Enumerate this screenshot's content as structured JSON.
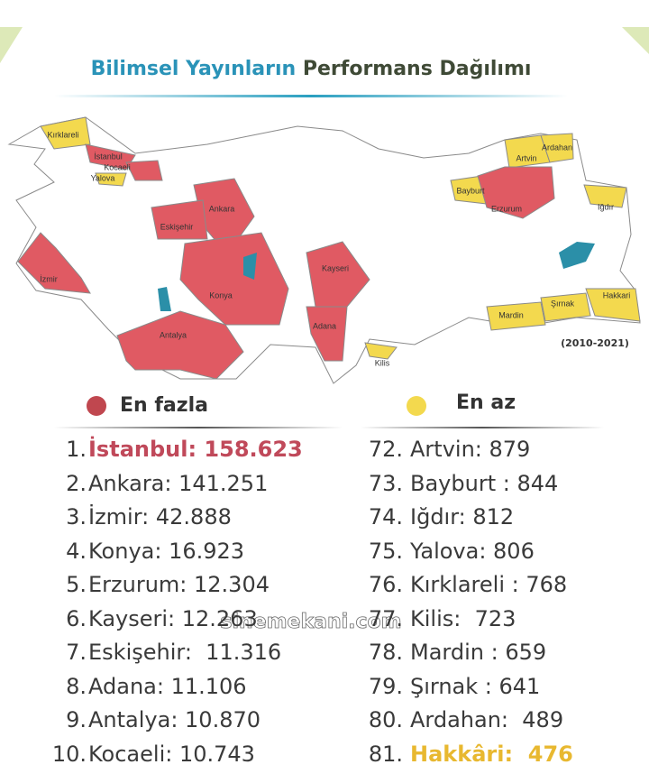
{
  "title": {
    "part1": "Bilimsel Yayınların",
    "part2": "Performans Dağılımı"
  },
  "map": {
    "labels": [
      "Kırklareli",
      "İstanbul",
      "Kocaeli",
      "Yalova",
      "Ankara",
      "Eskişehir",
      "İzmir",
      "Konya",
      "Antalya",
      "Kayseri",
      "Adana",
      "Kilis",
      "Artvin",
      "Ardahan",
      "Bayburt",
      "Erzurum",
      "Iğdır",
      "Mardin",
      "Şırnak",
      "Hakkari"
    ],
    "period": "(2010-2021)"
  },
  "legend": {
    "most": "En fazla",
    "least": "En az"
  },
  "lists": {
    "most": [
      {
        "rank": "1.",
        "text": "İstanbul: 158.623"
      },
      {
        "rank": "2.",
        "text": "Ankara: 141.251"
      },
      {
        "rank": "3.",
        "text": "İzmir: 42.888"
      },
      {
        "rank": "4.",
        "text": "Konya: 16.923"
      },
      {
        "rank": "5.",
        "text": "Erzurum: 12.304"
      },
      {
        "rank": "6.",
        "text": "Kayseri: 12.263"
      },
      {
        "rank": "7.",
        "text": "Eskişehir:  11.316"
      },
      {
        "rank": "8.",
        "text": "Adana: 11.106"
      },
      {
        "rank": "9.",
        "text": "Antalya: 10.870"
      },
      {
        "rank": "10.",
        "text": "Kocaeli: 10.743"
      }
    ],
    "least": [
      {
        "rank": "72.",
        "text": "Artvin: 879"
      },
      {
        "rank": "73.",
        "text": "Bayburt : 844"
      },
      {
        "rank": "74.",
        "text": "Iğdır: 812"
      },
      {
        "rank": "75.",
        "text": "Yalova: 806"
      },
      {
        "rank": "76.",
        "text": "Kırklareli : 768"
      },
      {
        "rank": "77.",
        "text": "Kilis:  723"
      },
      {
        "rank": "78.",
        "text": "Mardin : 659"
      },
      {
        "rank": "79.",
        "text": "Şırnak : 641"
      },
      {
        "rank": "80.",
        "text": "Ardahan:  489"
      },
      {
        "rank": "81.",
        "text": "Hakkâri:  476"
      }
    ]
  },
  "watermark": "sinemekani.com"
}
